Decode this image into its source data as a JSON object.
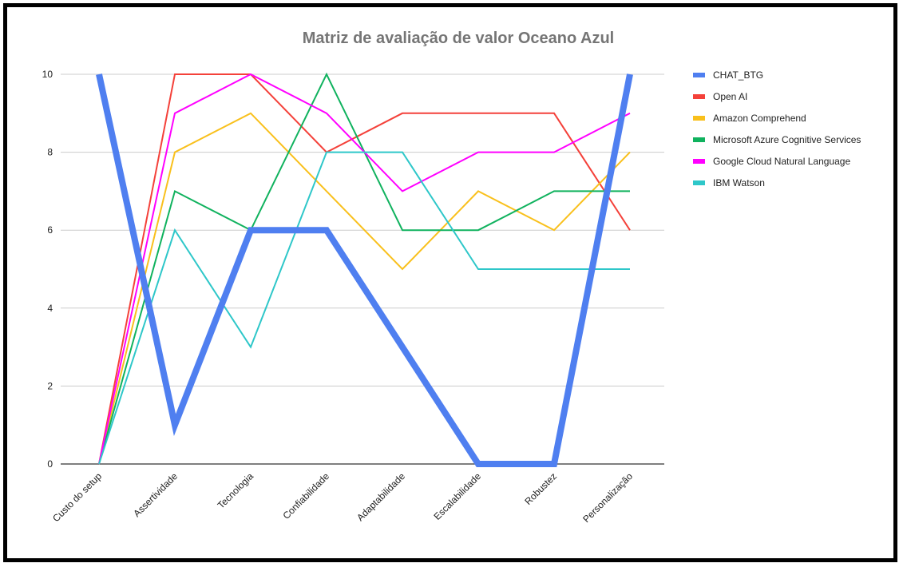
{
  "chart_data": {
    "type": "line",
    "title": "Matriz de avaliação de valor Oceano Azul",
    "xlabel": "",
    "ylabel": "",
    "ylim": [
      0,
      10
    ],
    "yticks": [
      0,
      2,
      4,
      6,
      8,
      10
    ],
    "grid": true,
    "legend_position": "right",
    "categories": [
      "Custo do setup",
      "Assertividade",
      "Tecnologia",
      "Confiabilidade",
      "Adaptabilidade",
      "Escalabilidade",
      "Robustez",
      "Personalização"
    ],
    "series": [
      {
        "name": "CHAT_BTG",
        "color": "#4f7ff0",
        "values": [
          10,
          1,
          6,
          6,
          3,
          0,
          0,
          10
        ]
      },
      {
        "name": "Open AI",
        "color": "#f4413a",
        "values": [
          0,
          10,
          10,
          8,
          9,
          9,
          9,
          6
        ]
      },
      {
        "name": "Amazon Comprehend",
        "color": "#f9c01c",
        "values": [
          0,
          8,
          9,
          7,
          5,
          7,
          6,
          8
        ]
      },
      {
        "name": "Microsoft Azure Cognitive Services",
        "color": "#10b25e",
        "values": [
          0,
          7,
          6,
          10,
          6,
          6,
          7,
          7
        ]
      },
      {
        "name": "Google Cloud Natural Language",
        "color": "#ff00ff",
        "values": [
          0,
          9,
          10,
          9,
          7,
          8,
          8,
          9
        ]
      },
      {
        "name": "IBM Watson",
        "color": "#2ec7c9",
        "values": [
          0,
          6,
          3,
          8,
          8,
          5,
          5,
          5
        ]
      }
    ]
  }
}
